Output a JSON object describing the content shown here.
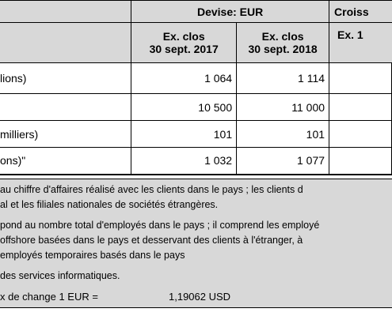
{
  "header": {
    "currency": "Devise: EUR",
    "growth": "Croiss",
    "col1_line1": "Ex. clos",
    "col1_line2": "30 sept. 2017",
    "col2_line1": "Ex. clos",
    "col2_line2": "30 sept. 2018",
    "col3": "Ex. 1"
  },
  "rows": [
    {
      "label": "lions)",
      "v2017": "1 064",
      "v2018": "1 114"
    },
    {
      "label": "",
      "v2017": "10 500",
      "v2018": "11 000"
    },
    {
      "label": " milliers)",
      "v2017": "101",
      "v2018": "101"
    },
    {
      "label": "ons)\"",
      "v2017": "1 032",
      "v2018": "1 077"
    }
  ],
  "notes": [
    "au chiffre d'affaires réalisé avec les clients dans le pays ; les clients d",
    "al et les filiales nationales de sociétés étrangères.",
    "pond au nombre total d'employés dans le pays ; il comprend les employé",
    "offshore basées dans le pays et desservant des clients à l'étranger, à",
    " employés temporaires basés dans le pays",
    " des services informatiques."
  ],
  "exchange": {
    "label": "x de change 1 EUR =",
    "value": "1,19062 USD"
  }
}
